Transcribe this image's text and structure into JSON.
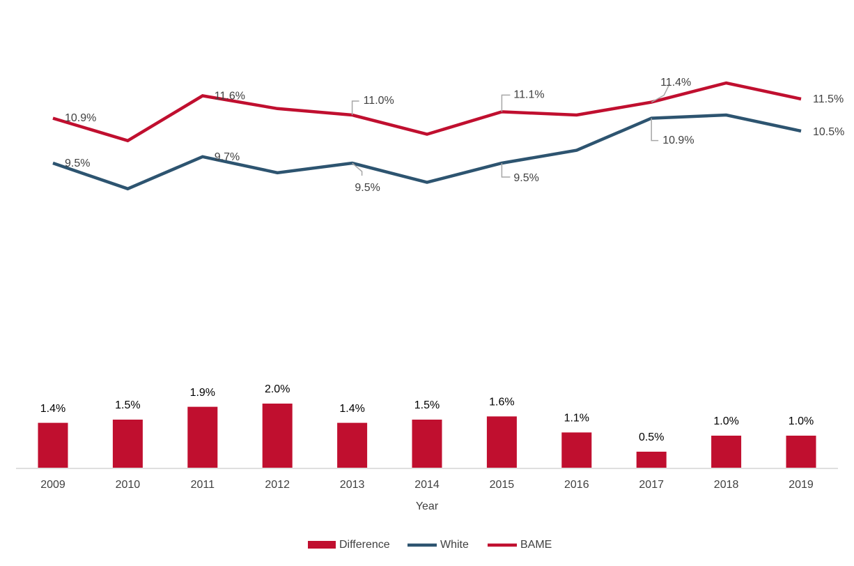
{
  "chart_data": {
    "type": "bar-line",
    "x_label": "Year",
    "categories": [
      "2009",
      "2010",
      "2011",
      "2012",
      "2013",
      "2014",
      "2015",
      "2016",
      "2017",
      "2018",
      "2019"
    ],
    "ylim": [
      0,
      14
    ],
    "series": [
      {
        "name": "Difference",
        "type": "bar",
        "color": "#c00f2f",
        "values": [
          1.4,
          1.5,
          1.9,
          2.0,
          1.4,
          1.5,
          1.6,
          1.1,
          0.5,
          1.0,
          1.0
        ],
        "value_labels": [
          "1.4%",
          "1.5%",
          "1.9%",
          "2.0%",
          "1.4%",
          "1.5%",
          "1.6%",
          "1.1%",
          "0.5%",
          "1.0%",
          "1.0%"
        ]
      },
      {
        "name": "White",
        "type": "line",
        "color": "#2d5470",
        "values": [
          9.5,
          8.7,
          9.7,
          9.2,
          9.5,
          8.9,
          9.5,
          9.9,
          10.9,
          11.0,
          10.5
        ],
        "value_labels": [
          "9.5%",
          null,
          "9.7%",
          null,
          "9.5%",
          null,
          "9.5%",
          null,
          "10.9%",
          null,
          "10.5%"
        ]
      },
      {
        "name": "BAME",
        "type": "line",
        "color": "#c00f2f",
        "values": [
          10.9,
          10.2,
          11.6,
          11.2,
          11.0,
          10.4,
          11.1,
          11.0,
          11.4,
          12.0,
          11.5
        ],
        "value_labels": [
          "10.9%",
          null,
          "11.6%",
          null,
          "11.0%",
          null,
          "11.1%",
          null,
          "11.4%",
          null,
          "11.5%"
        ]
      }
    ],
    "legend": "bottom"
  }
}
